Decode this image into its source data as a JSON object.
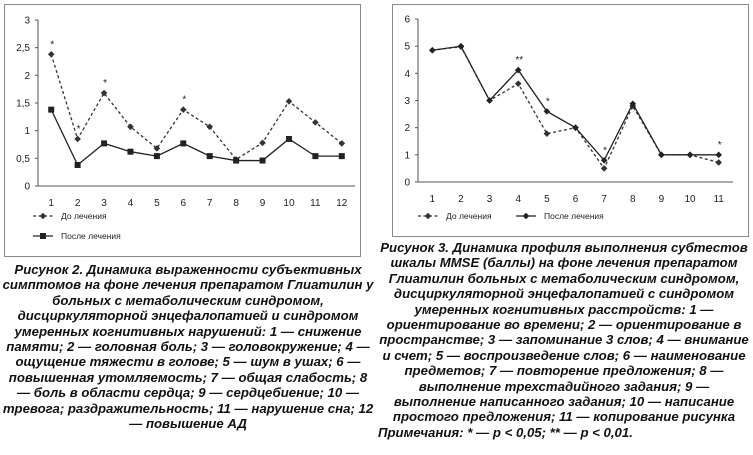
{
  "chart_data": [
    {
      "type": "line",
      "categories": [
        "1",
        "2",
        "3",
        "4",
        "5",
        "6",
        "7",
        "8",
        "9",
        "10",
        "11",
        "12"
      ],
      "y_ticks": [
        "0",
        "0,5",
        "1",
        "1,5",
        "2",
        "2,5",
        "3"
      ],
      "ylim": [
        0,
        3
      ],
      "grid": false,
      "legend_position": "bottom-left",
      "series": [
        {
          "name": "До лечения",
          "values": [
            2.38,
            0.85,
            1.68,
            1.07,
            0.68,
            1.38,
            1.07,
            0.48,
            0.78,
            1.53,
            1.15,
            0.77
          ],
          "style": "dashed",
          "marker": "diamond",
          "color": "#333333"
        },
        {
          "name": "После лечения",
          "values": [
            1.38,
            0.38,
            0.77,
            0.62,
            0.54,
            0.77,
            0.54,
            0.46,
            0.46,
            0.85,
            0.54,
            0.54
          ],
          "style": "solid",
          "marker": "square",
          "color": "#222222"
        }
      ],
      "annotations": [
        {
          "category": "1",
          "text": "*"
        },
        {
          "category": "2",
          "text": "*"
        },
        {
          "category": "3",
          "text": "*"
        },
        {
          "category": "6",
          "text": "*"
        }
      ]
    },
    {
      "type": "line",
      "categories": [
        "1",
        "2",
        "3",
        "4",
        "5",
        "6",
        "7",
        "8",
        "9",
        "10",
        "11"
      ],
      "y_ticks": [
        "0",
        "1",
        "2",
        "3",
        "4",
        "5",
        "6"
      ],
      "ylim": [
        0,
        6
      ],
      "grid": false,
      "legend_position": "bottom",
      "series": [
        {
          "name": "До лечения",
          "values": [
            4.85,
            4.98,
            3.0,
            3.62,
            1.78,
            2.0,
            0.5,
            2.8,
            1.0,
            1.0,
            0.72
          ],
          "style": "dashed",
          "marker": "diamond",
          "color": "#333333"
        },
        {
          "name": "После лечения",
          "values": [
            4.85,
            5.0,
            3.0,
            4.12,
            2.6,
            2.0,
            0.8,
            2.88,
            1.0,
            1.0,
            1.0
          ],
          "style": "solid",
          "marker": "diamond",
          "color": "#222222"
        }
      ],
      "annotations": [
        {
          "category": "4",
          "text": "**"
        },
        {
          "category": "5",
          "text": "*"
        },
        {
          "category": "7",
          "text": "*"
        },
        {
          "category": "11",
          "text": "*"
        }
      ]
    }
  ],
  "captions": {
    "left": {
      "title": "Рисунок 2. Динамика выраженности субъективных симптомов на фоне лечения препаратом Глиатилин у больных с метаболическим синдромом, дисциркуляторной энцефалопатией и синдромом умеренных когнитивных нарушений:",
      "body": "1 — снижение памяти; 2 — головная боль; 3 — головокружение; 4 — ощущение тяжести в голове; 5 — шум в ушах; 6 — повышенная утомляемость; 7 — общая слабость; 8 — боль в области сердца; 9 — сердцебиение; 10 — тревога; раздражительность; 11 — нарушение сна; 12 — повышение АД"
    },
    "right": {
      "title": "Рисунок 3. Динамика профиля выполнения субтестов шкалы MMSE (баллы) на фоне лечения препаратом Глиатилин больных с метаболическим синдромом, дисциркуляторной энцефалопатией с синдромом умеренных когнитивных расстройств:",
      "body": "1 — ориентирование во времени; 2 — ориентирование в пространстве; 3 — запоминание 3 слов; 4 — внимание и счет; 5 — воспроизведение слов; 6 — наименование предметов; 7 — повторение предложения; 8 — выполнение трехстадийного задания; 9 — выполнение написанного задания; 10 — написание простого предложения; 11 — копирование рисунка",
      "note": "Примечания: * — p < 0,05; ** — p < 0,01."
    }
  }
}
